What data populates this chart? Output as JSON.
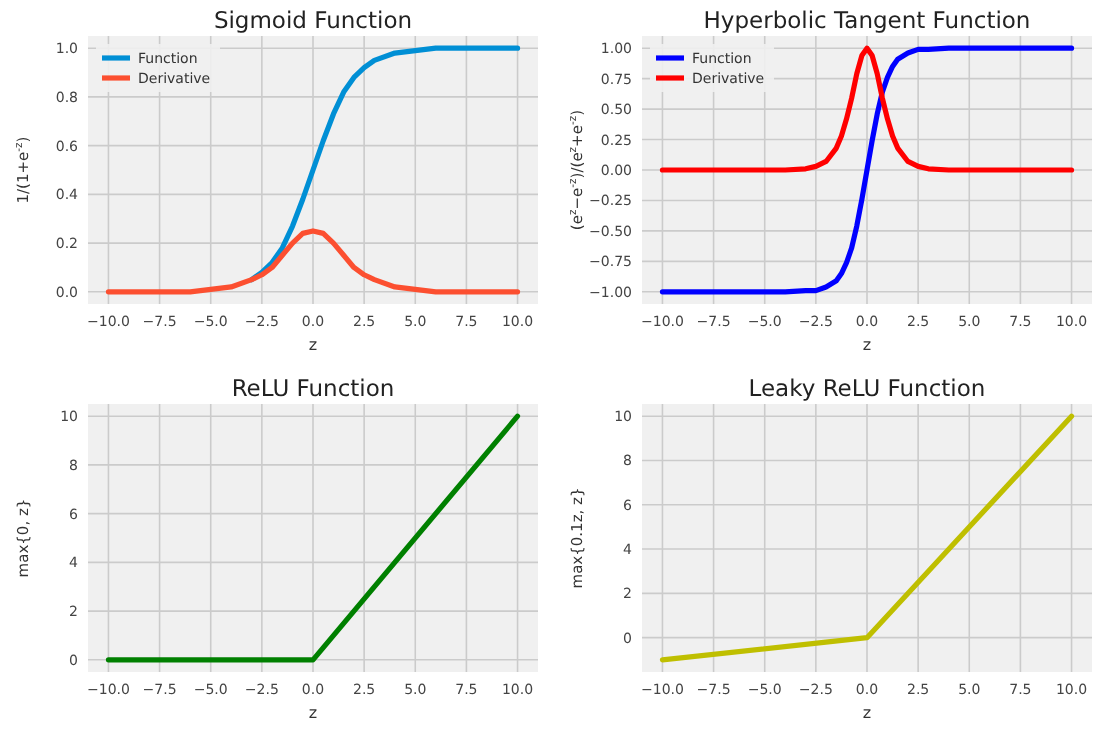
{
  "chart_data": [
    {
      "type": "line",
      "title": "Sigmoid Function",
      "xlabel": "z",
      "ylabel": "1/(1+e$^{-z}$)",
      "x": [
        -10,
        -8,
        -6,
        -5,
        -4,
        -3,
        -2.5,
        -2,
        -1.5,
        -1,
        -0.5,
        0,
        0.5,
        1,
        1.5,
        2,
        2.5,
        3,
        4,
        5,
        6,
        8,
        10
      ],
      "series": [
        {
          "name": "Function",
          "color": "#008fd5",
          "values": [
            null,
            null,
            null,
            null,
            null,
            0.05,
            0.08,
            0.12,
            0.18,
            0.27,
            0.38,
            0.5,
            0.62,
            0.73,
            0.82,
            0.88,
            0.92,
            0.95,
            0.98,
            0.99,
            1,
            1,
            1
          ]
        },
        {
          "name": "Derivative",
          "color": "#fc4f30",
          "values": [
            0,
            0,
            0,
            0.01,
            0.02,
            0.05,
            0.07,
            0.1,
            0.15,
            0.2,
            0.24,
            0.25,
            0.24,
            0.2,
            0.15,
            0.1,
            0.07,
            0.05,
            0.02,
            0.01,
            0,
            0,
            0
          ]
        }
      ],
      "xlim": [
        -11,
        11
      ],
      "xticks": [
        {
          "value": -10,
          "label": "−10.0"
        },
        {
          "value": -7.5,
          "label": "−7.5"
        },
        {
          "value": -5,
          "label": "−5.0"
        },
        {
          "value": -2.5,
          "label": "−2.5"
        },
        {
          "value": 0,
          "label": "0.0"
        },
        {
          "value": 2.5,
          "label": "2.5"
        },
        {
          "value": 5,
          "label": "5.0"
        },
        {
          "value": 7.5,
          "label": "7.5"
        },
        {
          "value": 10,
          "label": "10.0"
        }
      ],
      "ylim": [
        -0.05,
        1.05
      ],
      "yticks": [
        {
          "value": 0,
          "label": "0.0"
        },
        0.2,
        0.4,
        0.6,
        0.8,
        {
          "value": 1,
          "label": "1.0"
        }
      ],
      "grid": true,
      "legend": "top left",
      "line_style": "solid",
      "marker": "none"
    },
    {
      "type": "line",
      "title": "Hyperbolic Tangent Function",
      "xlabel": "z",
      "ylabel": "(e$^{z}$−e$^{-z}$)/(e$^{z}$+e$^{-z}$)",
      "x": [
        -10,
        -8,
        -6,
        -5,
        -4,
        -3,
        -2.5,
        -2,
        -1.5,
        -1.25,
        -1,
        -0.75,
        -0.5,
        -0.25,
        0,
        0.25,
        0.5,
        0.75,
        1,
        1.25,
        1.5,
        2,
        2.5,
        3,
        4,
        5,
        6,
        8,
        10
      ],
      "series": [
        {
          "name": "Function",
          "color": "#0000ff",
          "values": [
            -1,
            -1,
            -1,
            -1,
            -1,
            -0.99,
            -0.99,
            -0.96,
            -0.91,
            -0.85,
            -0.76,
            -0.64,
            -0.46,
            -0.24,
            0,
            0.24,
            0.46,
            0.64,
            0.76,
            0.85,
            0.91,
            0.96,
            0.99,
            0.99,
            1,
            1,
            1,
            1,
            1
          ]
        },
        {
          "name": "Derivative",
          "color": "#ff0000",
          "values": [
            0,
            0,
            0,
            0,
            0,
            0.01,
            0.03,
            0.07,
            0.18,
            0.28,
            0.42,
            0.59,
            0.79,
            0.94,
            1,
            0.94,
            0.79,
            0.59,
            0.42,
            0.28,
            0.18,
            0.07,
            0.03,
            0.01,
            0,
            0,
            0,
            0,
            0
          ]
        }
      ],
      "xlim": [
        -11,
        11
      ],
      "xticks": [
        {
          "value": -10,
          "label": "−10.0"
        },
        {
          "value": -7.5,
          "label": "−7.5"
        },
        {
          "value": -5,
          "label": "−5.0"
        },
        {
          "value": -2.5,
          "label": "−2.5"
        },
        {
          "value": 0,
          "label": "0.0"
        },
        {
          "value": 2.5,
          "label": "2.5"
        },
        {
          "value": 5,
          "label": "5.0"
        },
        {
          "value": 7.5,
          "label": "7.5"
        },
        {
          "value": 10,
          "label": "10.0"
        }
      ],
      "ylim": [
        -1.1,
        1.1
      ],
      "yticks": [
        {
          "value": -1,
          "label": "−1.00"
        },
        {
          "value": -0.75,
          "label": "−0.75"
        },
        {
          "value": -0.5,
          "label": "−0.50"
        },
        {
          "value": -0.25,
          "label": "−0.25"
        },
        {
          "value": 0,
          "label": "0.00"
        },
        0.25,
        {
          "value": 0.5,
          "label": "0.50"
        },
        0.75,
        {
          "value": 1,
          "label": "1.00"
        }
      ],
      "grid": true,
      "legend": "top left",
      "line_style": "solid",
      "marker": "none"
    },
    {
      "type": "line",
      "title": "ReLU Function",
      "xlabel": "z",
      "ylabel": "max{0, z}",
      "x": [
        -10,
        0,
        10
      ],
      "series": [
        {
          "color": "#008000",
          "values": [
            0,
            0,
            10
          ]
        }
      ],
      "xlim": [
        -11,
        11
      ],
      "xticks": [
        {
          "value": -10,
          "label": "−10.0"
        },
        {
          "value": -7.5,
          "label": "−7.5"
        },
        {
          "value": -5,
          "label": "−5.0"
        },
        {
          "value": -2.5,
          "label": "−2.5"
        },
        {
          "value": 0,
          "label": "0.0"
        },
        {
          "value": 2.5,
          "label": "2.5"
        },
        {
          "value": 5,
          "label": "5.0"
        },
        {
          "value": 7.5,
          "label": "7.5"
        },
        {
          "value": 10,
          "label": "10.0"
        }
      ],
      "ylim": [
        -0.5,
        10.5
      ],
      "yticks": [
        0,
        2,
        4,
        6,
        8,
        10
      ],
      "grid": true,
      "line_style": "solid",
      "marker": "none"
    },
    {
      "type": "line",
      "title": "Leaky ReLU Function",
      "xlabel": "z",
      "ylabel": "max{0.1z, z}",
      "x": [
        -10,
        0,
        10
      ],
      "series": [
        {
          "color": "#bfbf00",
          "values": [
            -1,
            0,
            10
          ]
        }
      ],
      "xlim": [
        -11,
        11
      ],
      "xticks": [
        {
          "value": -10,
          "label": "−10.0"
        },
        {
          "value": -7.5,
          "label": "−7.5"
        },
        {
          "value": -5,
          "label": "−5.0"
        },
        {
          "value": -2.5,
          "label": "−2.5"
        },
        {
          "value": 0,
          "label": "0.0"
        },
        {
          "value": 2.5,
          "label": "2.5"
        },
        {
          "value": 5,
          "label": "5.0"
        },
        {
          "value": 7.5,
          "label": "7.5"
        },
        {
          "value": 10,
          "label": "10.0"
        }
      ],
      "ylim": [
        -1.55,
        10.55
      ],
      "yticks": [
        0,
        2,
        4,
        6,
        8,
        10
      ],
      "grid": true,
      "line_style": "solid",
      "marker": "none"
    }
  ]
}
